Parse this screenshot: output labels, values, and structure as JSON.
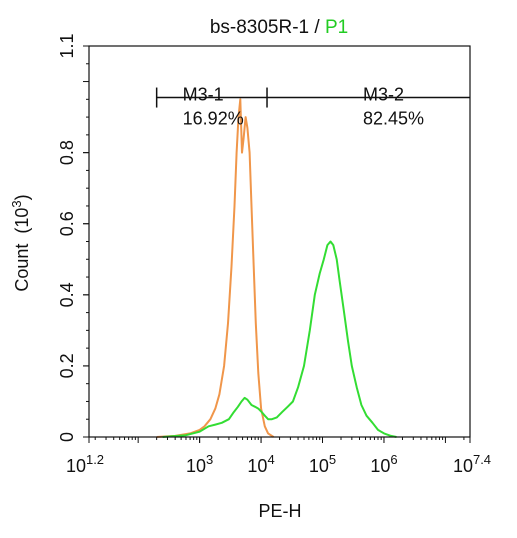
{
  "chart_data": {
    "type": "line",
    "title": {
      "sample": "bs-8305R-1",
      "separator": " / ",
      "gate": "P1",
      "gate_color": "#22cc22"
    },
    "xlabel": "PE-H",
    "ylabel": "Count  (10",
    "ylabel_exp": "3",
    "ylabel_close": ")",
    "x_scale": "log",
    "xlim": [
      15.85,
      25118864
    ],
    "ylim": [
      0,
      1.1
    ],
    "x_ticks": [
      {
        "value": 15.85,
        "base": "10",
        "exp": "1.2"
      },
      {
        "value": 1000,
        "base": "10",
        "exp": "3"
      },
      {
        "value": 10000,
        "base": "10",
        "exp": "4"
      },
      {
        "value": 100000,
        "base": "10",
        "exp": "5"
      },
      {
        "value": 1000000,
        "base": "10",
        "exp": "6"
      },
      {
        "value": 25118864,
        "base": "10",
        "exp": "7.4"
      }
    ],
    "y_ticks": [
      {
        "value": 0,
        "label": "0"
      },
      {
        "value": 0.2,
        "label": "0.2"
      },
      {
        "value": 0.4,
        "label": "0.4"
      },
      {
        "value": 0.6,
        "label": "0.6"
      },
      {
        "value": 0.8,
        "label": "0.8"
      },
      {
        "value": 1.1,
        "label": "1.1"
      }
    ],
    "grid": false,
    "gates": [
      {
        "name": "M3-1",
        "percent": "16.92%",
        "x_start": 200,
        "x_end": 12500,
        "y": 0.955
      },
      {
        "name": "M3-2",
        "percent": "82.45%",
        "x_start": 12500,
        "x_end": 25118864,
        "y": 0.955
      }
    ],
    "series": [
      {
        "color": "#f0964a",
        "points": [
          [
            200,
            0
          ],
          [
            400,
            0.003
          ],
          [
            700,
            0.01
          ],
          [
            1000,
            0.02
          ],
          [
            1200,
            0.03
          ],
          [
            1500,
            0.05
          ],
          [
            1800,
            0.08
          ],
          [
            2100,
            0.12
          ],
          [
            2500,
            0.2
          ],
          [
            2900,
            0.32
          ],
          [
            3300,
            0.48
          ],
          [
            3700,
            0.65
          ],
          [
            4000,
            0.8
          ],
          [
            4300,
            0.9
          ],
          [
            4600,
            0.95
          ],
          [
            4900,
            0.8
          ],
          [
            5200,
            0.84
          ],
          [
            5600,
            0.9
          ],
          [
            6000,
            0.87
          ],
          [
            6500,
            0.8
          ],
          [
            7000,
            0.65
          ],
          [
            7600,
            0.48
          ],
          [
            8200,
            0.32
          ],
          [
            9000,
            0.18
          ],
          [
            10000,
            0.08
          ],
          [
            11500,
            0.03
          ],
          [
            13000,
            0.01
          ],
          [
            16000,
            0
          ]
        ]
      },
      {
        "color": "#33dd33",
        "points": [
          [
            250,
            0
          ],
          [
            600,
            0.005
          ],
          [
            1000,
            0.015
          ],
          [
            1400,
            0.03
          ],
          [
            1800,
            0.035
          ],
          [
            2300,
            0.04
          ],
          [
            3000,
            0.05
          ],
          [
            3600,
            0.07
          ],
          [
            4200,
            0.085
          ],
          [
            4800,
            0.1
          ],
          [
            5400,
            0.11
          ],
          [
            6000,
            0.105
          ],
          [
            7000,
            0.09
          ],
          [
            8000,
            0.085
          ],
          [
            9000,
            0.08
          ],
          [
            10000,
            0.072
          ],
          [
            11500,
            0.06
          ],
          [
            13000,
            0.05
          ],
          [
            15000,
            0.05
          ],
          [
            18000,
            0.055
          ],
          [
            22000,
            0.07
          ],
          [
            27000,
            0.085
          ],
          [
            33000,
            0.1
          ],
          [
            40000,
            0.14
          ],
          [
            50000,
            0.2
          ],
          [
            62000,
            0.3
          ],
          [
            75000,
            0.4
          ],
          [
            90000,
            0.46
          ],
          [
            105000,
            0.5
          ],
          [
            120000,
            0.54
          ],
          [
            135000,
            0.55
          ],
          [
            150000,
            0.54
          ],
          [
            170000,
            0.5
          ],
          [
            190000,
            0.44
          ],
          [
            220000,
            0.36
          ],
          [
            260000,
            0.27
          ],
          [
            300000,
            0.2
          ],
          [
            360000,
            0.14
          ],
          [
            430000,
            0.09
          ],
          [
            520000,
            0.06
          ],
          [
            650000,
            0.04
          ],
          [
            800000,
            0.02
          ],
          [
            1000000,
            0.01
          ],
          [
            1300000,
            0.003
          ],
          [
            1600000,
            0
          ]
        ]
      }
    ]
  }
}
